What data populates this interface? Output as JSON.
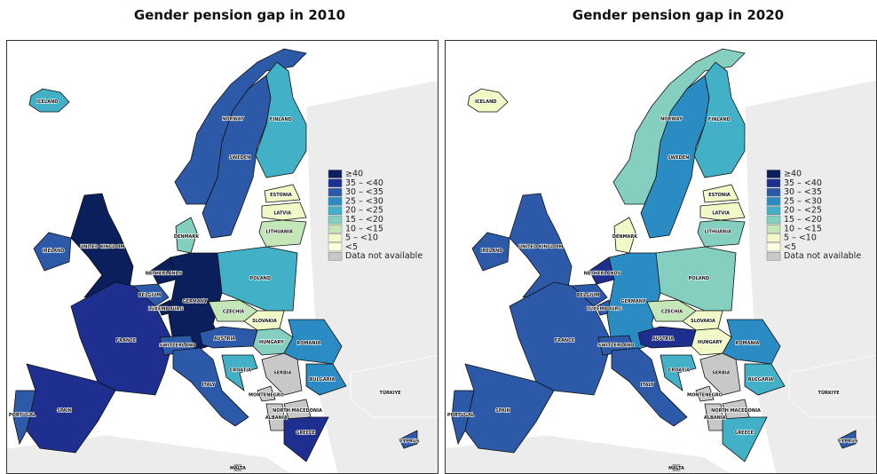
{
  "maps": [
    {
      "title": "Gender pension gap in 2010",
      "legend": [
        {
          "label": "≥40",
          "color": "#0b1f5c"
        },
        {
          "label": "35 – <40",
          "color": "#1f2f8f"
        },
        {
          "label": "30 – <35",
          "color": "#2c5aa8"
        },
        {
          "label": "25 – <30",
          "color": "#2a8cc2"
        },
        {
          "label": "20 – <25",
          "color": "#42b0c6"
        },
        {
          "label": "15 – <20",
          "color": "#85cfc0"
        },
        {
          "label": "10 – <15",
          "color": "#c3e7b9"
        },
        {
          "label": "5 – <10",
          "color": "#f1f9c6"
        },
        {
          "label": "<5",
          "color": "#ffffe0"
        },
        {
          "label": "Data not available",
          "color": "#c8c8c8"
        }
      ],
      "countries": [
        {
          "name": "ICELAND",
          "category": "20 – <25"
        },
        {
          "name": "NORWAY",
          "category": "30 – <35"
        },
        {
          "name": "SWEDEN",
          "category": "30 – <35"
        },
        {
          "name": "FINLAND",
          "category": "20 – <25"
        },
        {
          "name": "ESTONIA",
          "category": "5 – <10"
        },
        {
          "name": "LATVIA",
          "category": "5 – <10"
        },
        {
          "name": "LITHUANIA",
          "category": "10 – <15"
        },
        {
          "name": "DENMARK",
          "category": "15 – <20"
        },
        {
          "name": "IRELAND",
          "category": "30 – <35"
        },
        {
          "name": "UNITED KINGDOM",
          "category": "≥40"
        },
        {
          "name": "NETHERLANDS",
          "category": "≥40"
        },
        {
          "name": "BELGIUM",
          "category": "30 – <35"
        },
        {
          "name": "LUXEMBOURG",
          "category": "≥40"
        },
        {
          "name": "GERMANY",
          "category": "≥40"
        },
        {
          "name": "POLAND",
          "category": "20 – <25"
        },
        {
          "name": "CZECHIA",
          "category": "10 – <15"
        },
        {
          "name": "SLOVAKIA",
          "category": "5 – <10"
        },
        {
          "name": "AUSTRIA",
          "category": "30 – <35"
        },
        {
          "name": "HUNGARY",
          "category": "15 – <20"
        },
        {
          "name": "ROMANIA",
          "category": "25 – <30"
        },
        {
          "name": "BULGARIA",
          "category": "25 – <30"
        },
        {
          "name": "FRANCE",
          "category": "35 – <40"
        },
        {
          "name": "SWITZERLAND",
          "category": "30 – <35"
        },
        {
          "name": "ITALY",
          "category": "30 – <35"
        },
        {
          "name": "SPAIN",
          "category": "35 – <40"
        },
        {
          "name": "PORTUGAL",
          "category": "30 – <35"
        },
        {
          "name": "CROATIA",
          "category": "20 – <25"
        },
        {
          "name": "SERBIA",
          "category": "Data not available"
        },
        {
          "name": "MONTENEGRO",
          "category": "Data not available"
        },
        {
          "name": "NORTH MACEDONIA",
          "category": "Data not available"
        },
        {
          "name": "ALBANIA",
          "category": "Data not available"
        },
        {
          "name": "GREECE",
          "category": "35 – <40"
        },
        {
          "name": "CYPRUS",
          "category": "30 – <35"
        },
        {
          "name": "MALTA",
          "category": "25 – <30"
        },
        {
          "name": "TÜRKIYE"
        }
      ]
    },
    {
      "title": "Gender pension gap in 2020",
      "legend": [
        {
          "label": "≥40",
          "color": "#0b1f5c"
        },
        {
          "label": "35 – <40",
          "color": "#1f2f8f"
        },
        {
          "label": "30 – <35",
          "color": "#2c5aa8"
        },
        {
          "label": "25 – <30",
          "color": "#2a8cc2"
        },
        {
          "label": "20 – <25",
          "color": "#42b0c6"
        },
        {
          "label": "15 – <20",
          "color": "#85cfc0"
        },
        {
          "label": "10 – <15",
          "color": "#c3e7b9"
        },
        {
          "label": "5 – <10",
          "color": "#f1f9c6"
        },
        {
          "label": "<5",
          "color": "#ffffe0"
        },
        {
          "label": "Data not available",
          "color": "#c8c8c8"
        }
      ],
      "countries": [
        {
          "name": "ICELAND",
          "category": "5 – <10"
        },
        {
          "name": "NORWAY",
          "category": "15 – <20"
        },
        {
          "name": "SWEDEN",
          "category": "25 – <30"
        },
        {
          "name": "FINLAND",
          "category": "20 – <25"
        },
        {
          "name": "ESTONIA",
          "category": "5 – <10"
        },
        {
          "name": "LATVIA",
          "category": "5 – <10"
        },
        {
          "name": "LITHUANIA",
          "category": "15 – <20"
        },
        {
          "name": "DENMARK",
          "category": "5 – <10"
        },
        {
          "name": "IRELAND",
          "category": "30 – <35"
        },
        {
          "name": "UNITED KINGDOM",
          "category": "30 – <35"
        },
        {
          "name": "NETHERLANDS",
          "category": "35 – <40"
        },
        {
          "name": "BELGIUM",
          "category": "30 – <35"
        },
        {
          "name": "LUXEMBOURG",
          "category": "30 – <35"
        },
        {
          "name": "GERMANY",
          "category": "25 – <30"
        },
        {
          "name": "POLAND",
          "category": "15 – <20"
        },
        {
          "name": "CZECHIA",
          "category": "10 – <15"
        },
        {
          "name": "SLOVAKIA",
          "category": "5 – <10"
        },
        {
          "name": "AUSTRIA",
          "category": "35 – <40"
        },
        {
          "name": "HUNGARY",
          "category": "5 – <10"
        },
        {
          "name": "ROMANIA",
          "category": "25 – <30"
        },
        {
          "name": "BULGARIA",
          "category": "20 – <25"
        },
        {
          "name": "FRANCE",
          "category": "30 – <35"
        },
        {
          "name": "SWITZERLAND",
          "category": "30 – <35"
        },
        {
          "name": "ITALY",
          "category": "30 – <35"
        },
        {
          "name": "SPAIN",
          "category": "30 – <35"
        },
        {
          "name": "PORTUGAL",
          "category": "30 – <35"
        },
        {
          "name": "CROATIA",
          "category": "20 – <25"
        },
        {
          "name": "SERBIA",
          "category": "Data not available"
        },
        {
          "name": "MONTENEGRO",
          "category": "Data not available"
        },
        {
          "name": "NORTH MACEDONIA",
          "category": "Data not available"
        },
        {
          "name": "ALBANIA",
          "category": "Data not available"
        },
        {
          "name": "GREECE",
          "category": "20 – <25"
        },
        {
          "name": "CYPRUS",
          "category": "30 – <35"
        },
        {
          "name": "MALTA",
          "category": "20 – <25"
        },
        {
          "name": "TÜRKIYE"
        }
      ]
    }
  ]
}
